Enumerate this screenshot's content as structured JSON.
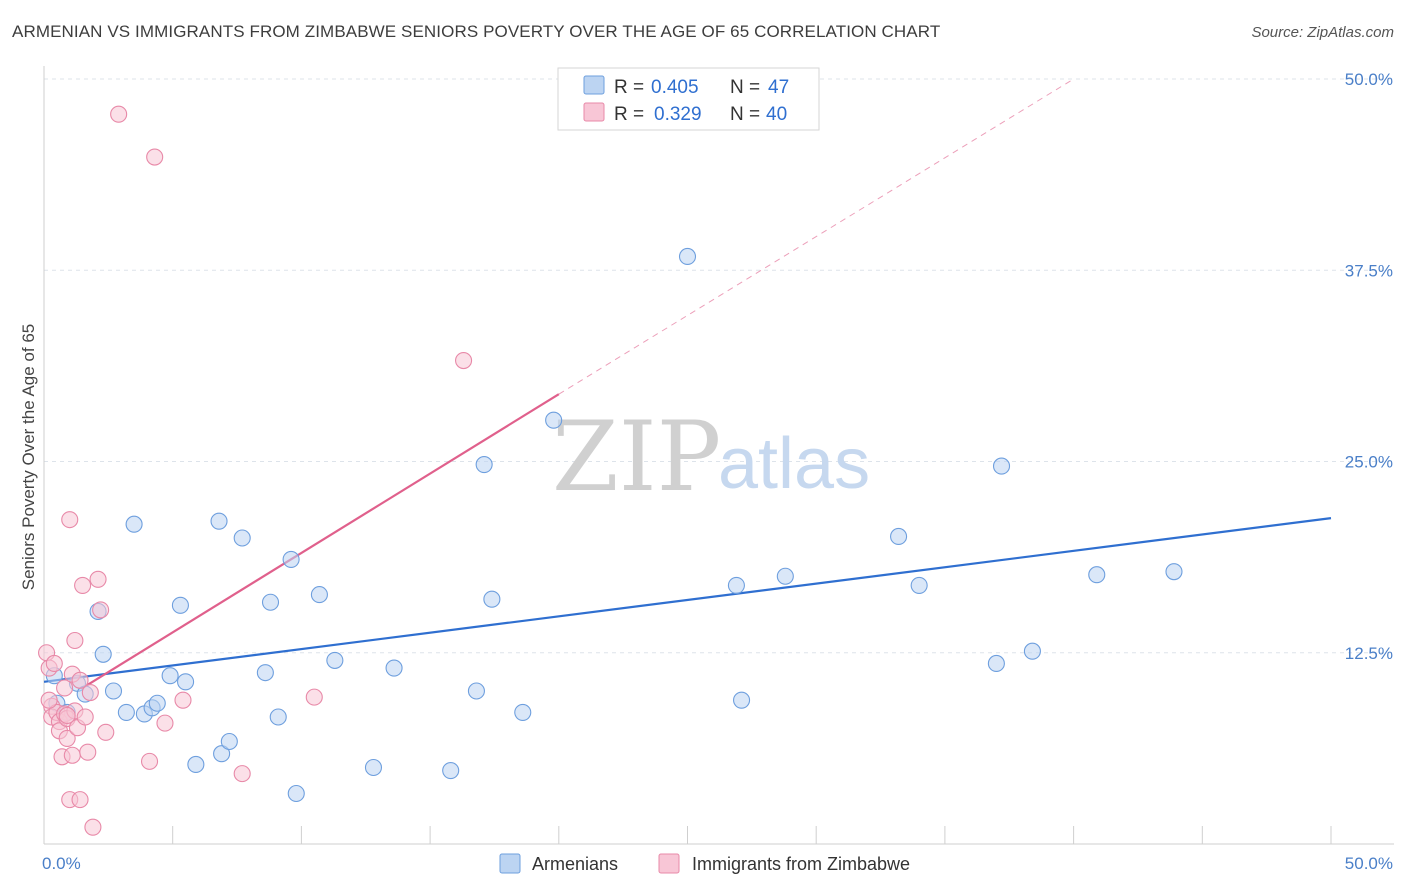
{
  "header": {
    "title": "ARMENIAN VS IMMIGRANTS FROM ZIMBABWE SENIORS POVERTY OVER THE AGE OF 65 CORRELATION CHART",
    "source": "Source: ZipAtlas.com"
  },
  "watermark": {
    "zip": "ZIP",
    "atlas": "atlas"
  },
  "colors": {
    "blue_fill": "#bcd4f2",
    "blue_stroke": "#6e9fde",
    "blue_line": "#2f6fd0",
    "pink_fill": "#f8c6d6",
    "pink_stroke": "#e889a8",
    "pink_line": "#e0608c",
    "grid": "#dde3ea",
    "axis": "#cfcfcf"
  },
  "legend": {
    "rows": [
      {
        "r_label": "R = ",
        "r_value": "0.405",
        "n_label": "N = ",
        "n_value": "47"
      },
      {
        "r_label": "R = ",
        "r_value": "0.329",
        "n_label": "N = ",
        "n_value": "40"
      }
    ]
  },
  "chart_data": {
    "type": "scatter",
    "title": "ARMENIAN VS IMMIGRANTS FROM ZIMBABWE SENIORS POVERTY OVER THE AGE OF 65 CORRELATION CHART",
    "xlabel": "",
    "ylabel": "Seniors Poverty Over the Age of 65",
    "xlim": [
      0,
      50
    ],
    "ylim": [
      0,
      50
    ],
    "y_ticks": [
      {
        "value": 12.5,
        "label": "12.5%"
      },
      {
        "value": 25.0,
        "label": "25.0%"
      },
      {
        "value": 37.5,
        "label": "37.5%"
      },
      {
        "value": 50.0,
        "label": "50.0%"
      }
    ],
    "x_tick_labels": [
      {
        "value": 0,
        "label": "0.0%"
      },
      {
        "value": 50,
        "label": "50.0%"
      }
    ],
    "x_minor_ticks": [
      0,
      5,
      10,
      15,
      20,
      25,
      30,
      35,
      40,
      45,
      50
    ],
    "grid": true,
    "legend_position": "top-center",
    "series": [
      {
        "name": "Armenians",
        "color": "blue",
        "r": 0.405,
        "n": 47,
        "trend": {
          "x0": 0,
          "y0": 10.6,
          "x1": 50,
          "y1": 21.3,
          "dashed_to": null
        },
        "points": [
          [
            0.4,
            11.0
          ],
          [
            0.5,
            9.2
          ],
          [
            0.9,
            8.6
          ],
          [
            1.3,
            10.5
          ],
          [
            1.6,
            9.8
          ],
          [
            2.1,
            15.2
          ],
          [
            2.3,
            12.4
          ],
          [
            2.7,
            10.0
          ],
          [
            3.2,
            8.6
          ],
          [
            3.5,
            20.9
          ],
          [
            3.9,
            8.5
          ],
          [
            4.2,
            8.9
          ],
          [
            4.4,
            9.2
          ],
          [
            4.9,
            11.0
          ],
          [
            5.3,
            15.6
          ],
          [
            5.5,
            10.6
          ],
          [
            5.9,
            5.2
          ],
          [
            6.8,
            21.1
          ],
          [
            6.9,
            5.9
          ],
          [
            7.2,
            6.7
          ],
          [
            7.7,
            20.0
          ],
          [
            8.6,
            11.2
          ],
          [
            8.8,
            15.8
          ],
          [
            9.1,
            8.3
          ],
          [
            9.6,
            18.6
          ],
          [
            9.8,
            3.3
          ],
          [
            10.7,
            16.3
          ],
          [
            11.3,
            12.0
          ],
          [
            12.8,
            5.0
          ],
          [
            13.6,
            11.5
          ],
          [
            15.8,
            4.8
          ],
          [
            16.8,
            10.0
          ],
          [
            17.1,
            24.8
          ],
          [
            17.4,
            16.0
          ],
          [
            18.6,
            8.6
          ],
          [
            19.8,
            27.7
          ],
          [
            25.0,
            38.4
          ],
          [
            26.9,
            16.9
          ],
          [
            27.1,
            9.4
          ],
          [
            28.8,
            17.5
          ],
          [
            33.2,
            20.1
          ],
          [
            34.0,
            16.9
          ],
          [
            37.0,
            11.8
          ],
          [
            37.2,
            24.7
          ],
          [
            38.4,
            12.6
          ],
          [
            40.9,
            17.6
          ],
          [
            43.9,
            17.8
          ]
        ]
      },
      {
        "name": "Immigrants from Zimbabwe",
        "color": "pink",
        "r": 0.329,
        "n": 40,
        "trend": {
          "x0": 1.5,
          "y0": 10.2,
          "x1": 20.0,
          "y1": 29.4,
          "dashed_to": [
            40.0,
            50.0
          ]
        },
        "points": [
          [
            0.1,
            12.5
          ],
          [
            0.2,
            11.5
          ],
          [
            0.3,
            9.0
          ],
          [
            0.3,
            8.3
          ],
          [
            0.4,
            11.8
          ],
          [
            0.5,
            8.6
          ],
          [
            0.6,
            8.0
          ],
          [
            0.6,
            7.4
          ],
          [
            0.7,
            5.7
          ],
          [
            0.8,
            8.5
          ],
          [
            0.8,
            10.2
          ],
          [
            0.9,
            6.9
          ],
          [
            0.9,
            8.2
          ],
          [
            1.0,
            21.2
          ],
          [
            1.0,
            2.9
          ],
          [
            1.1,
            5.8
          ],
          [
            1.1,
            11.1
          ],
          [
            1.2,
            8.7
          ],
          [
            1.2,
            13.3
          ],
          [
            1.3,
            7.6
          ],
          [
            1.4,
            10.7
          ],
          [
            1.5,
            16.9
          ],
          [
            1.4,
            2.9
          ],
          [
            1.6,
            8.3
          ],
          [
            1.7,
            6.0
          ],
          [
            1.8,
            9.9
          ],
          [
            1.9,
            1.1
          ],
          [
            2.1,
            17.3
          ],
          [
            2.2,
            15.3
          ],
          [
            2.4,
            7.3
          ],
          [
            2.9,
            47.7
          ],
          [
            4.1,
            5.4
          ],
          [
            4.3,
            44.9
          ],
          [
            4.7,
            7.9
          ],
          [
            5.4,
            9.4
          ],
          [
            7.7,
            4.6
          ],
          [
            10.5,
            9.6
          ],
          [
            16.3,
            31.6
          ],
          [
            0.2,
            9.4
          ],
          [
            0.9,
            8.4
          ]
        ]
      }
    ]
  },
  "bottom_legend": [
    {
      "label": "Armenians",
      "color": "blue"
    },
    {
      "label": "Immigrants from Zimbabwe",
      "color": "pink"
    }
  ]
}
